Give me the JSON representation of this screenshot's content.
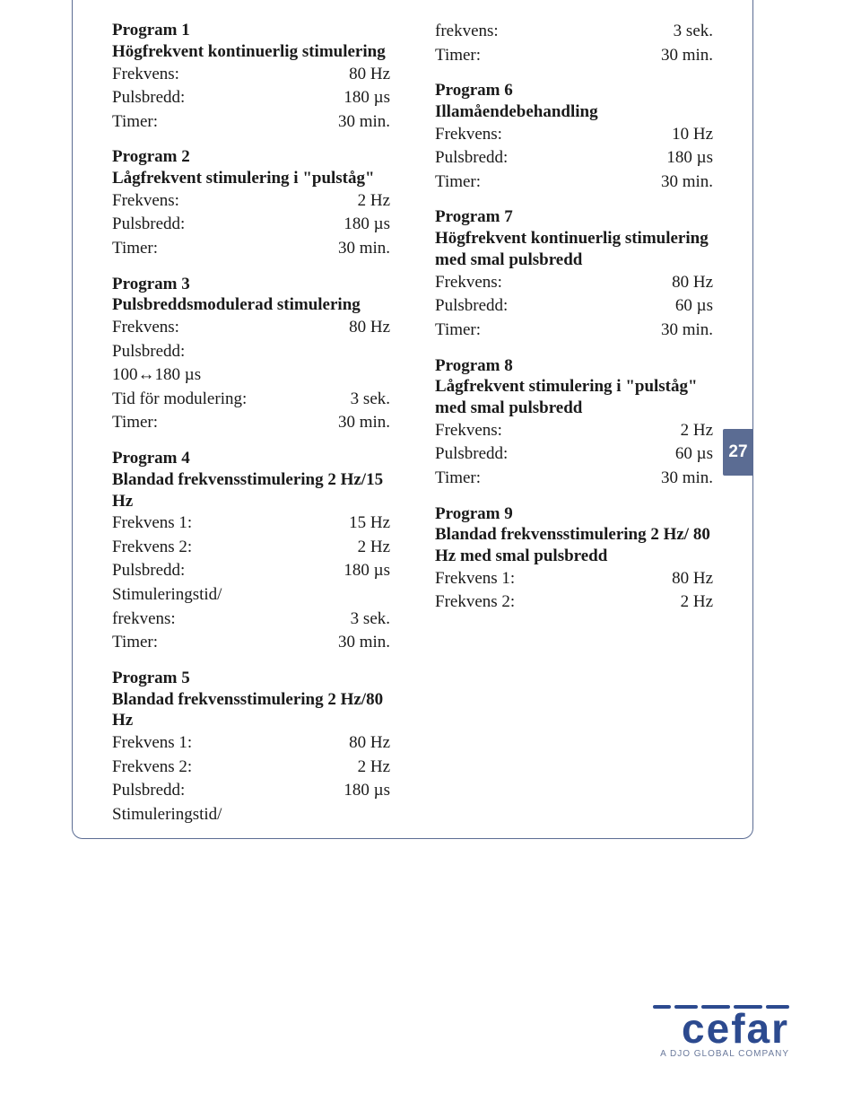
{
  "tab": "27",
  "logo": {
    "brand": "cefar",
    "tag": "A DJO GLOBAL COMPANY"
  },
  "left": {
    "p1": {
      "title": "Program 1",
      "desc": "Högfrekvent kontinuerlig stimulering",
      "r1l": "Frekvens:",
      "r1v": "80 Hz",
      "r2l": "Pulsbredd:",
      "r2v": "180 µs",
      "r3l": "Timer:",
      "r3v": "30 min."
    },
    "p2": {
      "title": "Program 2",
      "desc": "Lågfrekvent stimulering i \"pulståg\"",
      "r1l": "Frekvens:",
      "r1v": "2 Hz",
      "r2l": "Pulsbredd:",
      "r2v": "180 µs",
      "r3l": "Timer:",
      "r3v": "30 min."
    },
    "p3": {
      "title": "Program 3",
      "desc": "Pulsbreddsmodulerad stimulering",
      "r1l": "Frekvens:",
      "r1v": "80 Hz",
      "r2l": "Pulsbredd:",
      "r2line": "100↔180 µs",
      "r3l": "Tid för modulering:",
      "r3v": "3 sek.",
      "r4l": "Timer:",
      "r4v": "30 min."
    },
    "p4": {
      "title": "Program 4",
      "desc": "Blandad frekvensstimulering 2 Hz/15 Hz",
      "r1l": "Frekvens 1:",
      "r1v": "15 Hz",
      "r2l": "Frekvens 2:",
      "r2v": "2 Hz",
      "r3l": "Pulsbredd:",
      "r3v": "180 µs",
      "r4l": "Stimuleringstid/",
      "r5l": "frekvens:",
      "r5v": "3 sek.",
      "r6l": "Timer:",
      "r6v": "30 min."
    },
    "p5": {
      "title": "Program 5",
      "desc": "Blandad frekvensstimulering 2 Hz/80 Hz",
      "r1l": "Frekvens 1:",
      "r1v": "80 Hz",
      "r2l": "Frekvens 2:",
      "r2v": "2 Hz",
      "r3l": "Pulsbredd:",
      "r3v": "180 µs",
      "r4l": "Stimuleringstid/"
    }
  },
  "right": {
    "top": {
      "r1l": "frekvens:",
      "r1v": "3 sek.",
      "r2l": "Timer:",
      "r2v": "30 min."
    },
    "p6": {
      "title": "Program 6",
      "desc": "Illamåendebehandling",
      "r1l": "Frekvens:",
      "r1v": "10 Hz",
      "r2l": "Pulsbredd:",
      "r2v": "180 µs",
      "r3l": "Timer:",
      "r3v": "30 min."
    },
    "p7": {
      "title": "Program 7",
      "desc": "Högfrekvent kontinuerlig stimulering med smal pulsbredd",
      "r1l": "Frekvens:",
      "r1v": "80 Hz",
      "r2l": "Pulsbredd:",
      "r2v": "60 µs",
      "r3l": "Timer:",
      "r3v": "30 min."
    },
    "p8": {
      "title": "Program 8",
      "desc": "Lågfrekvent stimulering i \"pulståg\" med smal pulsbredd",
      "r1l": "Frekvens:",
      "r1v": "2 Hz",
      "r2l": "Pulsbredd:",
      "r2v": "60 µs",
      "r3l": "Timer:",
      "r3v": "30 min."
    },
    "p9": {
      "title": "Program 9",
      "desc": "Blandad frekvensstimulering 2 Hz/ 80 Hz med smal pulsbredd",
      "r1l": "Frekvens 1:",
      "r1v": "80 Hz",
      "r2l": "Frekvens 2:",
      "r2v": "2 Hz"
    }
  }
}
